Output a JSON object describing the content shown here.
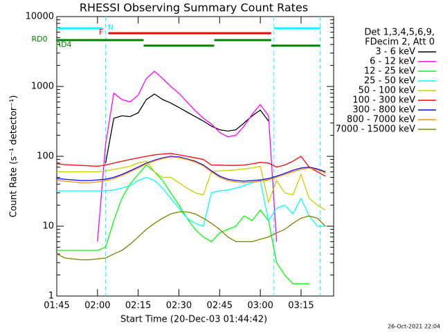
{
  "chart_data": {
    "type": "line",
    "title": "RHESSI Observing Summary Count Rates",
    "xlabel": "Start Time (20-Dec-03 01:44:42)",
    "ylabel": "Count Rate (s⁻¹ detector⁻¹)",
    "legend_header": [
      "Det 1,3,4,5,6,9,",
      "FDecim 2, Att 0"
    ],
    "timestamp": "26-Oct-2021 22:04",
    "log_y": true,
    "ylim": [
      1,
      10000
    ],
    "yticks": [
      1,
      10,
      100,
      1000,
      10000
    ],
    "xlim": [
      "01:45",
      "03:27"
    ],
    "xticks": [
      "01:45",
      "02:00",
      "02:15",
      "02:30",
      "02:45",
      "03:00",
      "03:15"
    ],
    "x": [
      "01:45",
      "01:48",
      "01:51",
      "01:54",
      "01:57",
      "02:00",
      "02:03",
      "02:06",
      "02:09",
      "02:12",
      "02:15",
      "02:18",
      "02:21",
      "02:24",
      "02:27",
      "02:30",
      "02:33",
      "02:36",
      "02:39",
      "02:42",
      "02:45",
      "02:48",
      "02:51",
      "02:54",
      "02:57",
      "03:00",
      "03:03",
      "03:06",
      "03:09",
      "03:12",
      "03:15",
      "03:18",
      "03:21",
      "03:24"
    ],
    "series": [
      {
        "name": "3 - 6 keV",
        "color": "#000000",
        "values": [
          null,
          null,
          null,
          null,
          null,
          null,
          80,
          350,
          380,
          370,
          420,
          650,
          780,
          650,
          580,
          500,
          430,
          370,
          320,
          270,
          240,
          230,
          240,
          300,
          380,
          460,
          320,
          null,
          null,
          null,
          null,
          null,
          null,
          null
        ]
      },
      {
        "name": "6 - 12 keV",
        "color": "#ff00ff",
        "values": [
          null,
          null,
          null,
          null,
          null,
          6,
          150,
          800,
          650,
          600,
          750,
          1300,
          1650,
          1300,
          1000,
          800,
          600,
          450,
          350,
          290,
          220,
          190,
          200,
          270,
          400,
          550,
          380,
          6,
          null,
          null,
          null,
          null,
          null,
          null
        ]
      },
      {
        "name": "12 - 25 keV",
        "color": "#00ff00",
        "values": [
          4.5,
          4.5,
          4.5,
          4.5,
          4.5,
          4.5,
          5,
          12,
          25,
          40,
          55,
          75,
          60,
          45,
          30,
          20,
          13,
          9,
          7,
          6,
          8,
          9,
          10,
          14,
          12,
          17,
          12,
          3,
          2,
          1.5,
          1.5,
          1.5,
          null,
          null
        ]
      },
      {
        "name": "25 - 50 keV",
        "color": "#00ffff",
        "values": [
          32,
          32,
          32,
          32,
          32,
          32,
          32,
          33,
          35,
          38,
          45,
          50,
          45,
          35,
          25,
          18,
          13,
          11,
          10,
          30,
          32,
          33,
          35,
          38,
          42,
          45,
          12,
          18,
          20,
          15,
          25,
          14,
          10,
          10
        ]
      },
      {
        "name": "50 - 100 keV",
        "color": "#cccc00",
        "values": [
          60,
          60,
          60,
          60,
          60,
          60,
          62,
          65,
          68,
          72,
          80,
          85,
          60,
          50,
          50,
          42,
          35,
          30,
          28,
          60,
          62,
          63,
          64,
          66,
          68,
          72,
          22,
          45,
          30,
          28,
          55,
          25,
          20,
          17
        ]
      },
      {
        "name": "100 - 300 keV",
        "color": "#ff0000",
        "values": [
          78,
          76,
          75,
          74,
          73,
          72,
          75,
          80,
          85,
          90,
          95,
          100,
          105,
          108,
          110,
          105,
          100,
          95,
          90,
          75,
          75,
          74,
          74,
          75,
          78,
          82,
          80,
          70,
          75,
          85,
          100,
          70,
          60,
          52
        ]
      },
      {
        "name": "300 - 800 keV",
        "color": "#0000ff",
        "values": [
          48,
          47,
          46,
          45,
          45,
          46,
          47,
          50,
          55,
          62,
          70,
          80,
          88,
          95,
          100,
          98,
          92,
          85,
          75,
          62,
          52,
          47,
          45,
          44,
          45,
          46,
          48,
          52,
          57,
          63,
          68,
          70,
          66,
          60
        ]
      },
      {
        "name": "800 - 7000 keV",
        "color": "#ff8c00",
        "values": [
          45,
          44,
          43,
          42,
          42,
          43,
          45,
          48,
          53,
          60,
          68,
          78,
          86,
          93,
          98,
          96,
          90,
          83,
          73,
          60,
          50,
          45,
          43,
          42,
          43,
          44,
          46,
          50,
          55,
          60,
          65,
          68,
          64,
          58
        ]
      },
      {
        "name": "7000 - 15000 keV",
        "color": "#808000",
        "values": [
          4,
          3.5,
          3.4,
          3.3,
          3.3,
          3.4,
          3.5,
          4,
          4.5,
          5.5,
          7,
          9,
          11,
          13,
          15,
          16,
          16,
          15,
          13,
          11,
          9,
          7,
          6,
          6,
          6,
          6.5,
          7,
          8,
          9,
          11,
          13,
          14,
          13,
          10
        ]
      }
    ],
    "flags": [
      {
        "label": "N",
        "color": "#00ffff",
        "intervals": [
          [
            "01:45",
            "02:02"
          ],
          [
            "03:05",
            "03:22"
          ]
        ]
      },
      {
        "label": "F",
        "color": "#ff0000",
        "intervals": [
          [
            "02:04",
            "03:04"
          ]
        ]
      },
      {
        "label": "RD0",
        "color": "#008000",
        "intervals": [
          [
            "01:45",
            "02:17"
          ],
          [
            "02:43",
            "03:04"
          ]
        ]
      },
      {
        "label": "RD4",
        "color": "#008000",
        "intervals": [
          [
            "02:17",
            "02:43"
          ],
          [
            "03:04",
            "03:22"
          ]
        ]
      }
    ],
    "vlines": {
      "color": "#00ffff",
      "x": [
        "02:03",
        "03:05",
        "03:22"
      ]
    }
  }
}
